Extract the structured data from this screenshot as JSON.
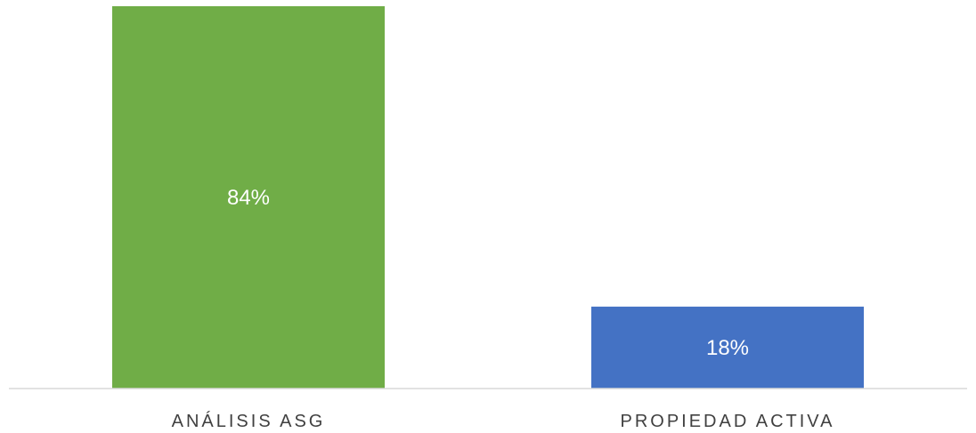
{
  "chart_data": {
    "type": "bar",
    "categories": [
      "ANÁLISIS ASG",
      "PROPIEDAD ACTIVA"
    ],
    "values": [
      84,
      18
    ],
    "data_labels": [
      "84%",
      "18%"
    ],
    "colors": [
      "#70AD47",
      "#4472C4"
    ],
    "ylim": [
      0,
      84
    ],
    "title": "",
    "xlabel": "",
    "ylabel": "",
    "grid": false,
    "legend": "none"
  }
}
